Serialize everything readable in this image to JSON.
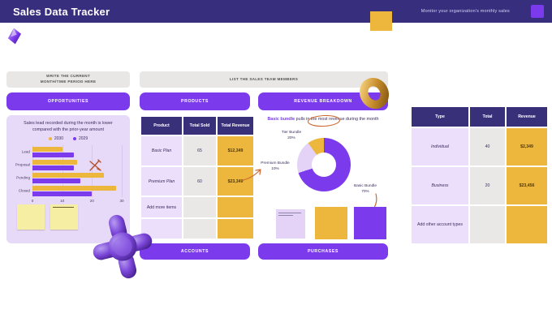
{
  "header": {
    "title": "Sales Data Tracker",
    "subtitle": "Monitor your organization's monthly sales"
  },
  "colors": {
    "accent_purple": "#7c3aed",
    "gold": "#edb63c",
    "header_bg": "#372e7e",
    "panel_lavender": "#e7daf8",
    "table_header": "#39307a"
  },
  "left_panel": {
    "note": "WRITE THE CURRENT\nMONTH/TIME PERIOD HERE",
    "button": "OPPORTUNITIES",
    "insight": "Sales lead recorded during the month is lower compared with the prior-year amount"
  },
  "products_panel": {
    "note": "LIST THE SALES TEAM MEMBERS",
    "button": "PRODUCTS",
    "table": {
      "headers": [
        "Product",
        "Total Sold",
        "Total Revenue"
      ],
      "rows": [
        [
          "Basic Plan",
          "65",
          "$12,349"
        ],
        [
          "Premium Plan",
          "60",
          "$23,349"
        ],
        [
          "Add more items",
          "",
          ""
        ],
        [
          "",
          "",
          ""
        ]
      ]
    },
    "footer_button": "ACCOUNTS"
  },
  "revenue_panel": {
    "button": "REVENUE BREAKDOWN",
    "insight_highlight": "Basic bundle",
    "insight_rest": " pulls in the most revenue during the month",
    "footer_button": "PURCHASES"
  },
  "accounts_panel": {
    "table": {
      "headers": [
        "Type",
        "Total",
        "Revenue"
      ],
      "rows": [
        [
          "Individual",
          "40",
          "$2,349"
        ],
        [
          "Business",
          "20",
          "$23,456"
        ],
        [
          "Add other account types",
          "",
          ""
        ]
      ]
    }
  },
  "chart_data": [
    {
      "type": "bar",
      "orientation": "horizontal",
      "title": "",
      "categories": [
        "Lead",
        "Proposal",
        "Pending",
        "Closed"
      ],
      "series": [
        {
          "name": "2030",
          "color": "#edb63c",
          "values": [
            10,
            15,
            24,
            28
          ]
        },
        {
          "name": "2029",
          "color": "#7c3aed",
          "values": [
            14,
            14,
            16,
            20
          ]
        }
      ],
      "xlim": [
        0,
        30
      ],
      "xticks": [
        0,
        10,
        20,
        30
      ],
      "legend_position": "top",
      "grid": true
    },
    {
      "type": "pie",
      "donut": true,
      "labels": [
        "Basic Bundle",
        "Tier Bundle",
        "Premium Bundle"
      ],
      "values": [
        70,
        20,
        10
      ],
      "colors": [
        "#7c3aed",
        "#e4d3f6",
        "#edb63c"
      ],
      "legend_position": "none"
    }
  ]
}
